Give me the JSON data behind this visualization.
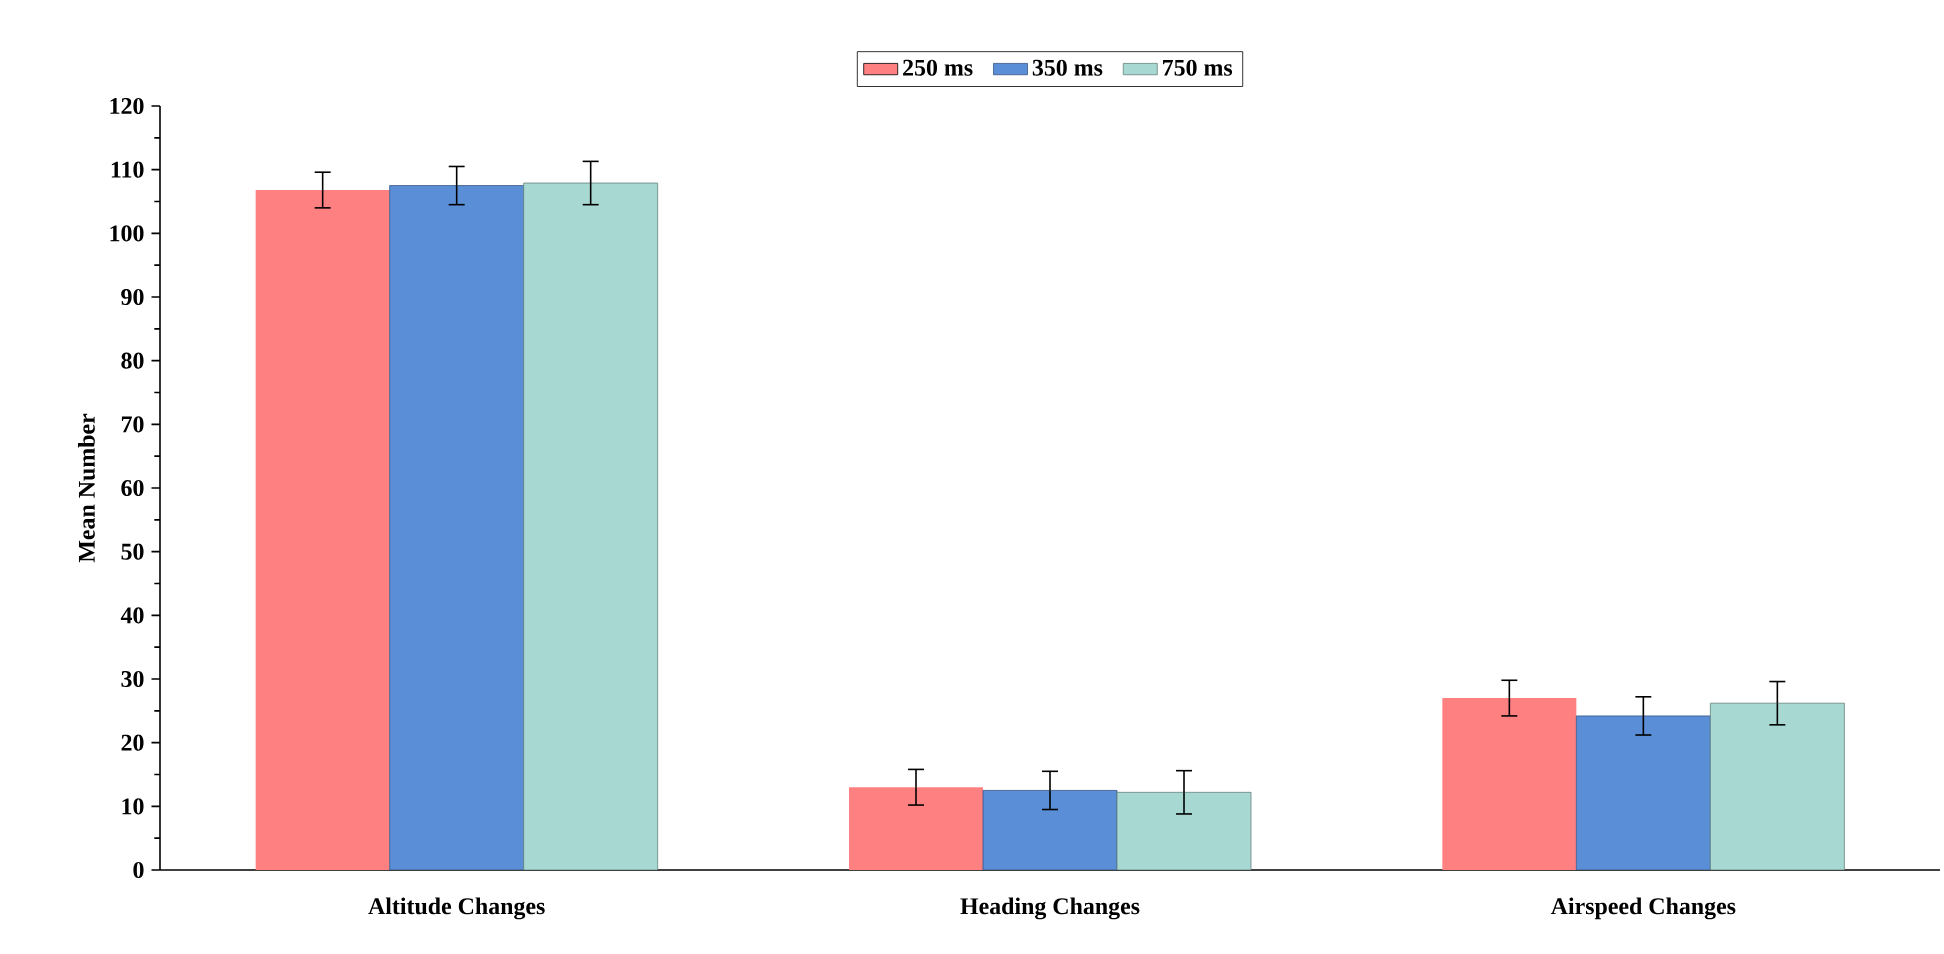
{
  "chart_data": {
    "type": "bar",
    "ylabel": "Mean Number",
    "categories": [
      "Altitude Changes",
      "Heading Changes",
      "Airspeed Changes"
    ],
    "series": [
      {
        "name": "250 ms",
        "color": "#ff8080",
        "values": [
          106.8,
          13,
          27
        ],
        "errors": [
          2.8,
          2.8,
          2.8
        ]
      },
      {
        "name": "350 ms",
        "color": "#5a8fd8",
        "values": [
          107.5,
          12.5,
          24.2
        ],
        "errors": [
          3,
          3,
          3
        ]
      },
      {
        "name": "750 ms",
        "color": "#a8d8d2",
        "values": [
          107.9,
          12.2,
          26.2
        ],
        "errors": [
          3.4,
          3.4,
          3.4
        ]
      }
    ],
    "ylim": [
      0,
      120
    ],
    "yticks": [
      0,
      10,
      20,
      30,
      40,
      50,
      60,
      70,
      80,
      90,
      100,
      110,
      120
    ],
    "grid": false,
    "legend": "top"
  }
}
